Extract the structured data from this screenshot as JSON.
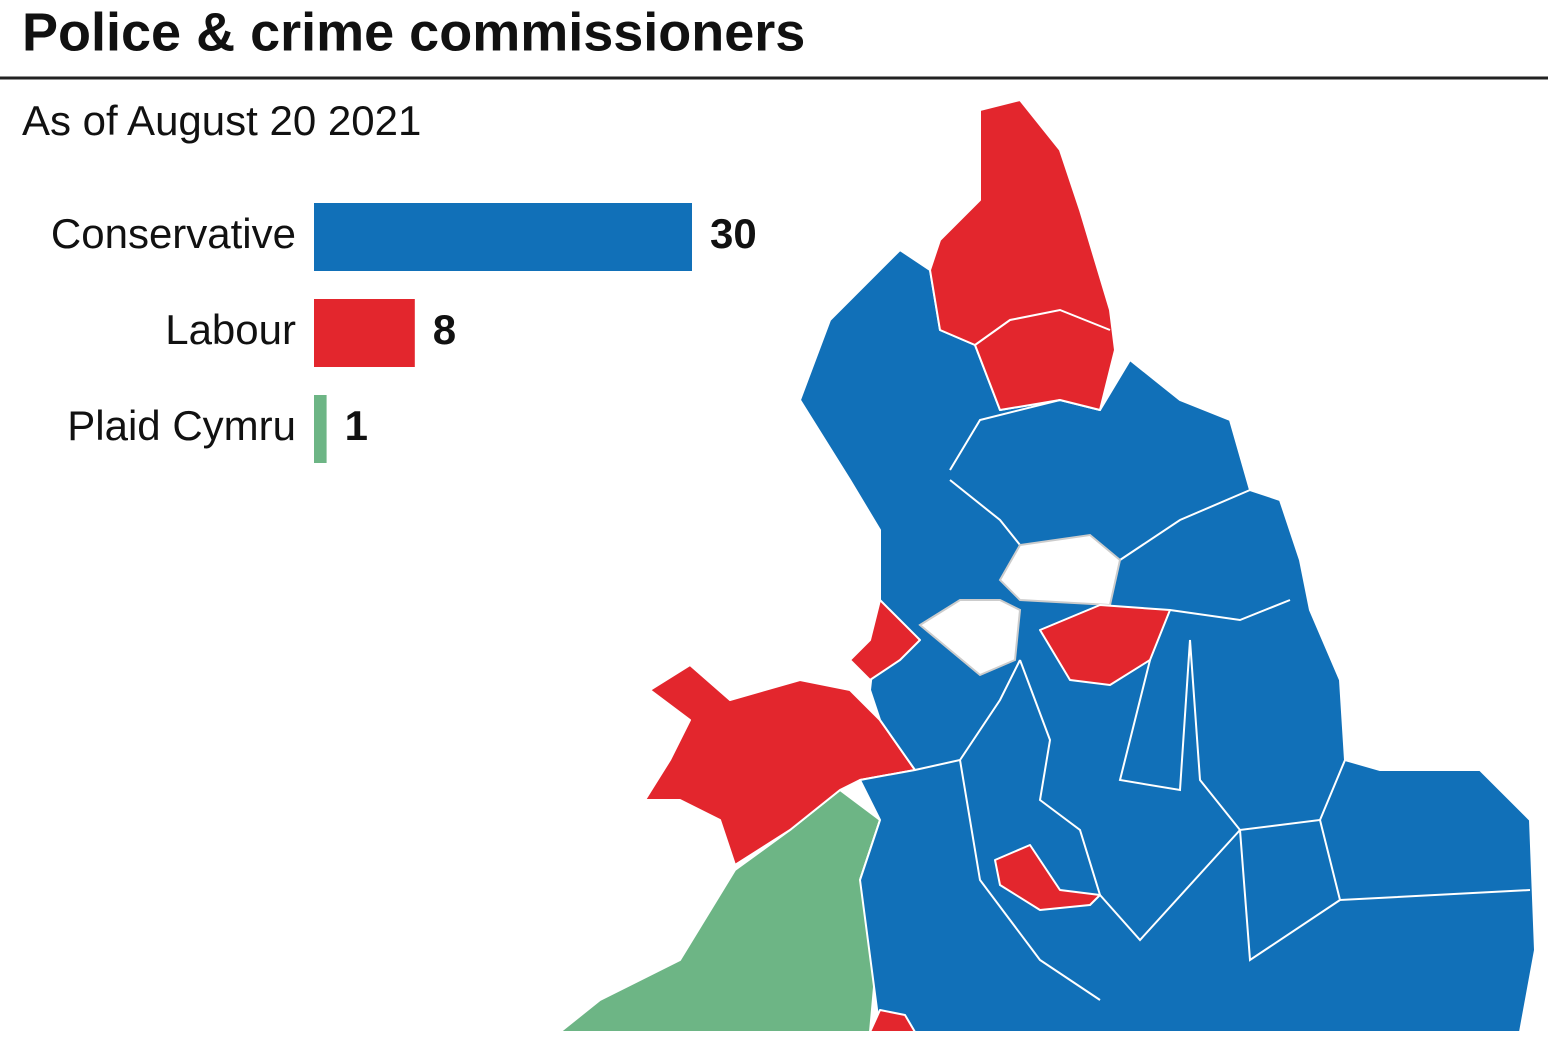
{
  "chart_data": {
    "type": "bar",
    "title": "Police & crime commissioners",
    "subtitle": "As of August 20 2021",
    "categories": [
      "Conservative",
      "Labour",
      "Plaid Cymru"
    ],
    "values": [
      30,
      8,
      1
    ],
    "colors": [
      "#1170b8",
      "#e3262d",
      "#6db585"
    ]
  }
}
